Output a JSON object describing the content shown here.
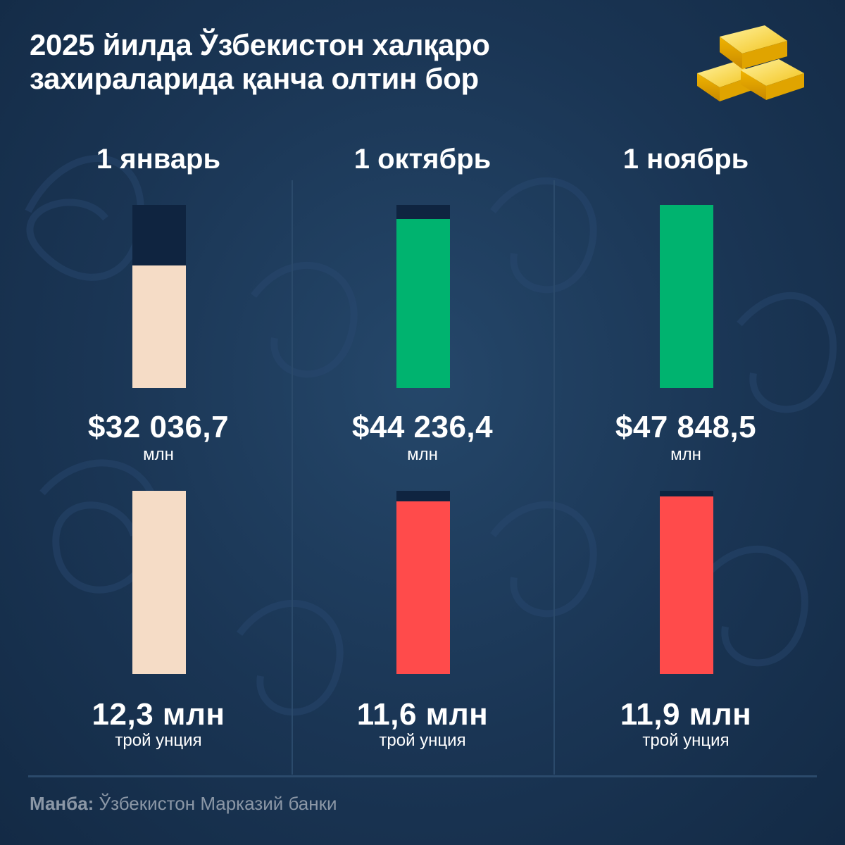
{
  "title": {
    "line1": "2025 йилда Ўзбекистон халқаро",
    "line2": "захираларида қанча олтин бор"
  },
  "icon": "gold-bars-icon",
  "colors": {
    "background": "#1a3554",
    "bar_track": "#0f2440",
    "baseline_bar": "#f5dcc6",
    "increase_bar": "#00b36f",
    "decrease_bar": "#ff4b4b",
    "source_text": "#8b97a6"
  },
  "chart_data": [
    {
      "type": "bar",
      "title": "",
      "categories": [
        "1 январь",
        "1 октябрь",
        "1 ноябрь"
      ],
      "values": [
        32036.7,
        44236.4,
        47848.5
      ],
      "value_labels": [
        "$32 036,7",
        "$44 236,4",
        "$47 848,5"
      ],
      "unit": "млн",
      "ylim": [
        0,
        47848.5
      ],
      "bar_colors": [
        "#f5dcc6",
        "#00b36f",
        "#00b36f"
      ]
    },
    {
      "type": "bar",
      "title": "",
      "categories": [
        "1 январь",
        "1 октябрь",
        "1 ноябрь"
      ],
      "values": [
        12.3,
        11.6,
        11.9
      ],
      "value_labels": [
        "12,3 млн",
        "11,6 млн",
        "11,9 млн"
      ],
      "unit": "трой унция",
      "ylim": [
        0,
        12.3
      ],
      "bar_colors": [
        "#f5dcc6",
        "#ff4b4b",
        "#ff4b4b"
      ]
    }
  ],
  "source": {
    "label": "Манба:",
    "text": " Ўзбекистон Марказий банки"
  }
}
